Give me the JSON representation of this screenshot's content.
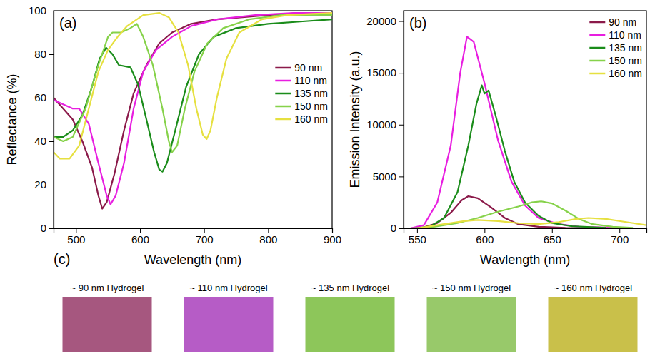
{
  "chart_data": [
    {
      "type": "line",
      "title": "(a)",
      "x_label": "Wavelength (nm)",
      "y_label": "Reflectance (%)",
      "xlim": [
        465,
        900
      ],
      "xticks": [
        500,
        600,
        700,
        800,
        900
      ],
      "ylim": [
        0,
        100
      ],
      "yticks": [
        0,
        20,
        40,
        60,
        80,
        100
      ],
      "grid": false,
      "legend": "upper right",
      "series": [
        {
          "name": "90 nm",
          "color": "#8b1a4a",
          "x": [
            465,
            480,
            495,
            510,
            525,
            535,
            541,
            548,
            560,
            575,
            590,
            610,
            630,
            650,
            680,
            720,
            760,
            800,
            850,
            900
          ],
          "values": [
            60,
            55,
            50,
            40,
            28,
            15,
            9,
            12,
            25,
            45,
            62,
            75,
            85,
            90,
            94,
            96,
            97,
            98,
            99,
            99
          ]
        },
        {
          "name": "110 nm",
          "color": "#e81ee0",
          "x": [
            465,
            480,
            495,
            505,
            520,
            535,
            548,
            554,
            562,
            575,
            590,
            605,
            625,
            650,
            680,
            720,
            780,
            840,
            900
          ],
          "values": [
            59,
            57,
            55,
            55,
            48,
            30,
            15,
            11,
            15,
            30,
            55,
            72,
            82,
            88,
            93,
            96,
            98,
            99,
            99
          ]
        },
        {
          "name": "135 nm",
          "color": "#1a8c1a",
          "x": [
            465,
            480,
            495,
            510,
            525,
            537,
            547,
            557,
            567,
            585,
            597,
            610,
            622,
            630,
            635,
            642,
            655,
            672,
            692,
            715,
            750,
            800,
            850,
            900
          ],
          "values": [
            42,
            42,
            45,
            52,
            65,
            78,
            83,
            80,
            75,
            74,
            66,
            50,
            35,
            27,
            26,
            30,
            45,
            65,
            80,
            88,
            92,
            94,
            95,
            96
          ]
        },
        {
          "name": "150 nm",
          "color": "#86d24a",
          "x": [
            465,
            480,
            495,
            515,
            535,
            550,
            557,
            570,
            585,
            595,
            605,
            620,
            635,
            645,
            650,
            658,
            670,
            685,
            705,
            730,
            770,
            820,
            900
          ],
          "values": [
            42,
            40,
            42,
            55,
            75,
            88,
            90,
            90,
            92,
            94,
            88,
            75,
            55,
            40,
            35,
            38,
            55,
            72,
            85,
            92,
            96,
            98,
            98
          ]
        },
        {
          "name": "160 nm",
          "color": "#e6e040",
          "x": [
            465,
            475,
            490,
            505,
            520,
            535,
            550,
            565,
            580,
            605,
            630,
            645,
            660,
            675,
            688,
            698,
            704,
            710,
            720,
            735,
            755,
            790,
            830,
            900
          ],
          "values": [
            35,
            32,
            32,
            38,
            55,
            72,
            82,
            88,
            93,
            98,
            99,
            97,
            90,
            75,
            55,
            43,
            41,
            45,
            60,
            78,
            90,
            96,
            98,
            99
          ]
        }
      ]
    },
    {
      "type": "line",
      "title": "(b)",
      "x_label": "Wavlength (nm)",
      "y_label": "Emission Intensity (a.u.)",
      "xlim": [
        540,
        720
      ],
      "xticks": [
        550,
        600,
        650,
        700
      ],
      "ylim": [
        0,
        21000
      ],
      "yticks": [
        0,
        5000,
        10000,
        15000,
        20000
      ],
      "grid": false,
      "legend": "upper right",
      "series": [
        {
          "name": "90 nm",
          "color": "#8b1a4a",
          "x": [
            545,
            555,
            565,
            575,
            583,
            588,
            595,
            605,
            615,
            625,
            640,
            660,
            700
          ],
          "values": [
            0,
            100,
            500,
            1500,
            2700,
            3100,
            2900,
            2000,
            1000,
            400,
            150,
            50,
            0
          ]
        },
        {
          "name": "110 nm",
          "color": "#e81ee0",
          "x": [
            545,
            555,
            565,
            575,
            582,
            587,
            592,
            600,
            610,
            620,
            630,
            640,
            655,
            670,
            700
          ],
          "values": [
            0,
            300,
            2500,
            8000,
            15000,
            18500,
            18000,
            14000,
            8500,
            4500,
            2200,
            1000,
            400,
            150,
            50
          ]
        },
        {
          "name": "135 nm",
          "color": "#1a8c1a",
          "x": [
            550,
            560,
            570,
            580,
            588,
            594,
            598,
            600,
            603,
            608,
            615,
            622,
            630,
            640,
            650,
            665,
            690
          ],
          "values": [
            0,
            200,
            1000,
            3500,
            8000,
            12000,
            13800,
            13000,
            13300,
            11000,
            7500,
            4500,
            2500,
            1200,
            500,
            200,
            50
          ]
        },
        {
          "name": "150 nm",
          "color": "#86d24a",
          "x": [
            545,
            560,
            580,
            595,
            610,
            625,
            635,
            642,
            650,
            660,
            670,
            680,
            695,
            710
          ],
          "values": [
            0,
            100,
            500,
            1000,
            1600,
            2100,
            2500,
            2600,
            2400,
            1700,
            900,
            400,
            150,
            50
          ]
        },
        {
          "name": "160 nm",
          "color": "#e6e040",
          "x": [
            550,
            570,
            585,
            595,
            610,
            625,
            640,
            655,
            668,
            677,
            690,
            705,
            720
          ],
          "values": [
            0,
            400,
            700,
            800,
            700,
            500,
            400,
            600,
            900,
            1000,
            900,
            600,
            300
          ]
        }
      ]
    }
  ],
  "panel_c": {
    "label": "(c)",
    "images": [
      {
        "label": "~ 90 nm Hydrogel",
        "color": "#a6577f"
      },
      {
        "label": "~ 110 nm Hydrogel",
        "color": "#b65cc6"
      },
      {
        "label": "~ 135 nm Hydrogel",
        "color": "#8dc65a"
      },
      {
        "label": "~ 150 nm Hydrogel",
        "color": "#98c96a"
      },
      {
        "label": "~ 160 nm Hydrogel",
        "color": "#c9c04a"
      }
    ]
  }
}
